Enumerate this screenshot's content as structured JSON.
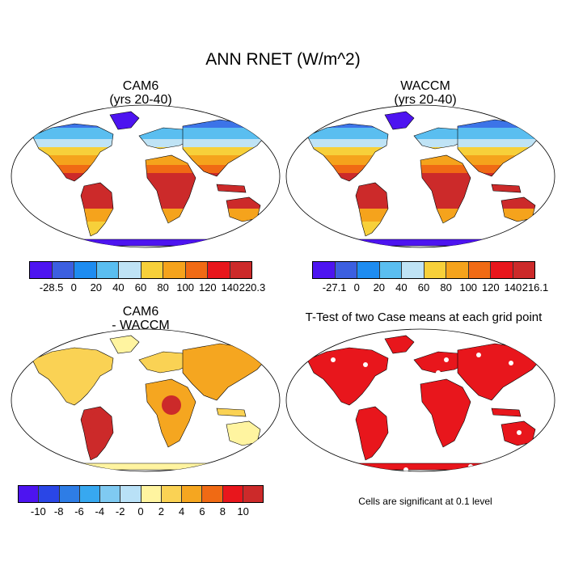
{
  "title": "ANN RNET (W/m^2)",
  "panels": {
    "p1": {
      "title1": "CAM6",
      "title2": "(yrs 20-40)"
    },
    "p2": {
      "title1": "WACCM",
      "title2": "(yrs 20-40)"
    },
    "p3": {
      "title1": "CAM6",
      "title2": "- WACCM"
    },
    "p4": {
      "title1": "T-Test of two Case means at each grid point",
      "note": "Cells are significant at 0.1 level"
    }
  },
  "colorbars": {
    "cb1": {
      "labels": [
        "-28.5",
        "0",
        "20",
        "40",
        "60",
        "80",
        "100",
        "120",
        "140",
        "220.3"
      ],
      "colors": [
        "#4d14f0",
        "#3c5fe0",
        "#1e8cf0",
        "#5abef0",
        "#bfe3f5",
        "#f7d03a",
        "#f5a31c",
        "#f06a14",
        "#e8161c",
        "#cc2a2a"
      ]
    },
    "cb2": {
      "labels": [
        "-27.1",
        "0",
        "20",
        "40",
        "60",
        "80",
        "100",
        "120",
        "140",
        "216.1"
      ],
      "colors": [
        "#4d14f0",
        "#3c5fe0",
        "#1e8cf0",
        "#5abef0",
        "#bfe3f5",
        "#f7d03a",
        "#f5a31c",
        "#f06a14",
        "#e8161c",
        "#cc2a2a"
      ]
    },
    "cb3": {
      "labels": [
        "-10",
        "-8",
        "-6",
        "-4",
        "-2",
        "0",
        "2",
        "4",
        "6",
        "8",
        "10"
      ],
      "colors": [
        "#4d14f0",
        "#2a46e6",
        "#2e7de6",
        "#37a8f0",
        "#7fcaf2",
        "#b9e1f7",
        "#fff4a0",
        "#fad254",
        "#f5a620",
        "#f06a14",
        "#e8161c",
        "#cc2a2a"
      ]
    }
  },
  "map_colors": {
    "ocean": "#ffffff",
    "polar_cold": "#4d14f0",
    "arctic": "#3c74e8",
    "boreal": "#5abef0",
    "temperate": "#bfe3f5",
    "mid": "#f7d03a",
    "warm": "#f5a31c",
    "hot": "#f06a14",
    "tropical": "#cc2a2a",
    "diff_low": "#fff4a0",
    "diff_mid": "#fad254",
    "diff_high": "#f5a620",
    "diff_max": "#cc2a2a",
    "signif": "#e8161c",
    "antarctic_diff": "#fff4a0"
  }
}
